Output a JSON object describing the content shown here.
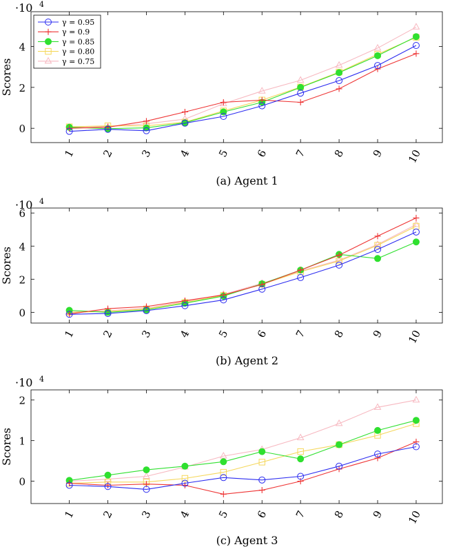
{
  "chart_data": [
    {
      "type": "line",
      "caption": "(a) Agent 1",
      "ylabel": "Scores",
      "exponent_label": "·10",
      "exponent_power": "4",
      "categories": [
        "1",
        "2",
        "3",
        "4",
        "5",
        "6",
        "7",
        "8",
        "9",
        "10"
      ],
      "ylim": [
        -0.7,
        5.7
      ],
      "yticks": [
        0,
        2,
        4
      ],
      "legend": "top-left",
      "series": [
        {
          "name": "γ = 0.95",
          "color": "#2b2bf0",
          "marker": "circle",
          "values": [
            -0.15,
            -0.05,
            -0.12,
            0.25,
            0.58,
            1.1,
            1.72,
            2.33,
            3.07,
            4.05
          ]
        },
        {
          "name": "γ = 0.9",
          "color": "#ee3333",
          "marker": "plus",
          "values": [
            0.0,
            0.05,
            0.35,
            0.8,
            1.27,
            1.38,
            1.27,
            1.93,
            2.9,
            3.65
          ]
        },
        {
          "name": "γ = 0.85",
          "color": "#2fe02f",
          "marker": "filled-circle",
          "values": [
            0.05,
            -0.02,
            0.02,
            0.27,
            0.8,
            1.27,
            2.0,
            2.72,
            3.55,
            4.48
          ]
        },
        {
          "name": "γ = 0.80",
          "color": "#f5d75a",
          "marker": "square",
          "values": [
            0.07,
            0.12,
            0.12,
            0.3,
            0.85,
            1.38,
            2.02,
            2.75,
            3.62,
            4.45
          ]
        },
        {
          "name": "γ = 0.75",
          "color": "#f7b8c0",
          "marker": "triangle",
          "values": [
            0.05,
            0.08,
            0.22,
            0.45,
            1.2,
            1.82,
            2.35,
            3.08,
            3.92,
            4.95
          ]
        }
      ]
    },
    {
      "type": "line",
      "caption": "(b) Agent 2",
      "ylabel": "Scores",
      "exponent_label": "·10",
      "exponent_power": "4",
      "categories": [
        "1",
        "2",
        "3",
        "4",
        "5",
        "6",
        "7",
        "8",
        "9",
        "10"
      ],
      "ylim": [
        -0.65,
        6.3
      ],
      "yticks": [
        0,
        2,
        4,
        6
      ],
      "legend": "none",
      "series": [
        {
          "name": "γ = 0.95",
          "color": "#2b2bf0",
          "marker": "circle",
          "values": [
            -0.12,
            -0.07,
            0.1,
            0.4,
            0.75,
            1.4,
            2.1,
            2.85,
            3.8,
            4.85
          ]
        },
        {
          "name": "γ = 0.9",
          "color": "#ee3333",
          "marker": "plus",
          "values": [
            -0.1,
            0.22,
            0.35,
            0.7,
            1.05,
            1.68,
            2.55,
            3.45,
            4.6,
            5.7
          ]
        },
        {
          "name": "γ = 0.85",
          "color": "#2fe02f",
          "marker": "filled-circle",
          "values": [
            0.12,
            0.0,
            0.15,
            0.55,
            0.98,
            1.72,
            2.55,
            3.5,
            3.25,
            4.25
          ]
        },
        {
          "name": "γ = 0.80",
          "color": "#f5d75a",
          "marker": "square",
          "values": [
            0.0,
            0.05,
            0.2,
            0.6,
            1.02,
            1.7,
            2.45,
            3.1,
            4.05,
            5.2
          ]
        },
        {
          "name": "γ = 0.75",
          "color": "#f7b8c0",
          "marker": "triangle",
          "values": [
            0.02,
            0.1,
            0.25,
            0.65,
            1.08,
            1.75,
            2.5,
            3.15,
            4.1,
            5.3
          ]
        }
      ]
    },
    {
      "type": "line",
      "caption": "(c) Agent 3",
      "ylabel": "Scores",
      "exponent_label": "·10",
      "exponent_power": "4",
      "categories": [
        "1",
        "2",
        "3",
        "4",
        "5",
        "6",
        "7",
        "8",
        "9",
        "10"
      ],
      "ylim": [
        -0.55,
        2.25
      ],
      "yticks": [
        0,
        1,
        2
      ],
      "legend": "none",
      "series": [
        {
          "name": "γ = 0.95",
          "color": "#2b2bf0",
          "marker": "circle",
          "values": [
            -0.1,
            -0.13,
            -0.2,
            -0.05,
            0.09,
            0.03,
            0.12,
            0.37,
            0.67,
            0.85
          ]
        },
        {
          "name": "γ = 0.9",
          "color": "#ee3333",
          "marker": "plus",
          "values": [
            -0.05,
            -0.1,
            -0.07,
            -0.1,
            -0.32,
            -0.22,
            0.0,
            0.3,
            0.57,
            0.97
          ]
        },
        {
          "name": "γ = 0.85",
          "color": "#2fe02f",
          "marker": "filled-circle",
          "values": [
            0.02,
            0.15,
            0.28,
            0.37,
            0.48,
            0.73,
            0.55,
            0.9,
            1.25,
            1.5
          ]
        },
        {
          "name": "γ = 0.80",
          "color": "#f5d75a",
          "marker": "square",
          "values": [
            -0.05,
            -0.02,
            -0.02,
            0.07,
            0.22,
            0.47,
            0.73,
            0.9,
            1.13,
            1.42
          ]
        },
        {
          "name": "γ = 0.75",
          "color": "#f7b8c0",
          "marker": "triangle",
          "values": [
            0.0,
            0.05,
            0.12,
            0.35,
            0.62,
            0.78,
            1.07,
            1.42,
            1.82,
            2.0
          ]
        }
      ]
    }
  ]
}
